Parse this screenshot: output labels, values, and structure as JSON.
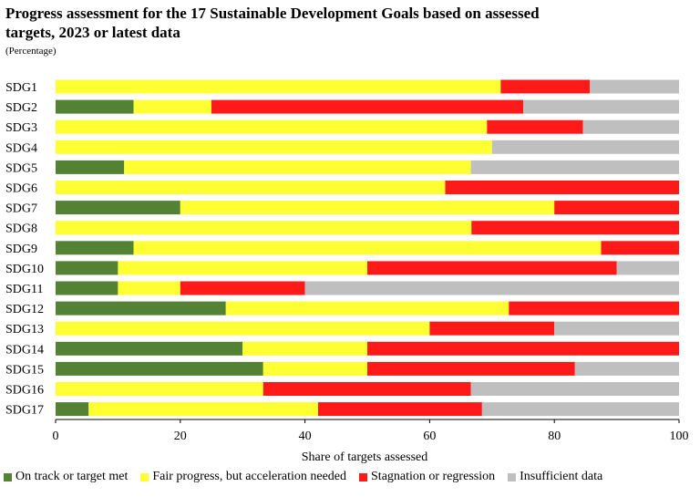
{
  "title": "Progress assessment for the 17 Sustainable Development Goals based on assessed targets, 2023 or latest data",
  "subtitle": "(Percentage)",
  "chart_data": {
    "type": "bar",
    "orientation": "horizontal",
    "stacked": true,
    "title": "Progress assessment for the 17 Sustainable Development Goals based on assessed targets, 2023 or latest data",
    "subtitle": "(Percentage)",
    "xlabel": "Share of targets assessed",
    "ylabel": "",
    "xlim": [
      0,
      100
    ],
    "xticks": [
      0,
      20,
      40,
      60,
      80,
      100
    ],
    "grid": false,
    "legend_position": "bottom",
    "categories": [
      "SDG1",
      "SDG2",
      "SDG3",
      "SDG4",
      "SDG5",
      "SDG6",
      "SDG7",
      "SDG8",
      "SDG9",
      "SDG10",
      "SDG11",
      "SDG12",
      "SDG13",
      "SDG14",
      "SDG15",
      "SDG16",
      "SDG17"
    ],
    "series": [
      {
        "name": "On track or target met",
        "color": "#548235",
        "values": [
          0,
          12.5,
          0,
          0,
          11,
          0,
          20,
          0,
          12.5,
          10,
          10,
          27.3,
          0,
          30,
          33.3,
          0,
          5.3
        ]
      },
      {
        "name": "Fair progress, but acceleration needed",
        "color": "#ffff33",
        "values": [
          71.4,
          12.5,
          69.2,
          70,
          55.6,
          62.5,
          60,
          66.7,
          75,
          40,
          10,
          45.4,
          60,
          20,
          16.7,
          33.3,
          36.8
        ]
      },
      {
        "name": "Stagnation or regression",
        "color": "#ff1a1a",
        "values": [
          14.3,
          50,
          15.4,
          0,
          0,
          37.5,
          20,
          33.3,
          12.5,
          40,
          20,
          27.3,
          20,
          50,
          33.3,
          33.3,
          26.3
        ]
      },
      {
        "name": "Insufficient data",
        "color": "#bfbfbf",
        "values": [
          14.3,
          25,
          15.4,
          30,
          33.4,
          0,
          0,
          0,
          0,
          10,
          60,
          0,
          20,
          0,
          16.7,
          33.4,
          31.6
        ]
      }
    ]
  }
}
